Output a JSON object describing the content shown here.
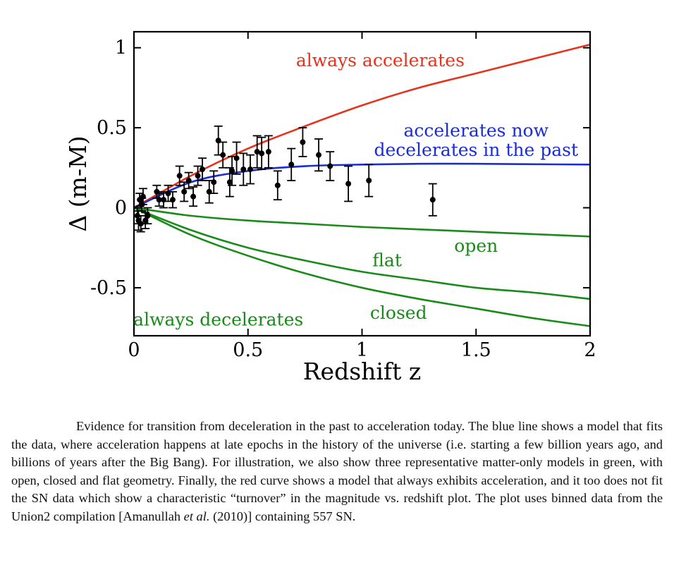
{
  "chart_data": {
    "type": "scatter",
    "xlabel": "Redshift z",
    "ylabel": "Δ (m-M)",
    "xlim": [
      0,
      2
    ],
    "ylim": [
      -0.8,
      1.1
    ],
    "x_ticks": [
      "0",
      "0.5",
      "1",
      "1.5",
      "2"
    ],
    "y_ticks": [
      "1",
      "0.5",
      "0",
      "-0.5"
    ],
    "x_tick_values": [
      0,
      0.5,
      1,
      1.5,
      2
    ],
    "y_tick_values": [
      1,
      0.5,
      0,
      -0.5
    ],
    "grid": false,
    "data_points": {
      "x": [
        0.015,
        0.02,
        0.025,
        0.03,
        0.035,
        0.04,
        0.05,
        0.06,
        0.1,
        0.11,
        0.13,
        0.15,
        0.17,
        0.2,
        0.22,
        0.24,
        0.26,
        0.28,
        0.3,
        0.33,
        0.35,
        0.37,
        0.39,
        0.42,
        0.43,
        0.45,
        0.48,
        0.51,
        0.54,
        0.56,
        0.59,
        0.63,
        0.69,
        0.74,
        0.81,
        0.86,
        0.94,
        1.03,
        1.31
      ],
      "y": [
        -0.05,
        -0.08,
        0.05,
        -0.1,
        0.02,
        0.07,
        -0.08,
        -0.05,
        0.1,
        0.05,
        0.05,
        0.09,
        0.05,
        0.2,
        0.1,
        0.17,
        0.07,
        0.2,
        0.24,
        0.1,
        0.16,
        0.42,
        0.33,
        0.16,
        0.23,
        0.31,
        0.24,
        0.24,
        0.35,
        0.34,
        0.35,
        0.14,
        0.27,
        0.41,
        0.33,
        0.26,
        0.15,
        0.17,
        0.05
      ],
      "yerr": [
        0.05,
        0.06,
        0.04,
        0.05,
        0.04,
        0.05,
        0.05,
        0.05,
        0.04,
        0.04,
        0.05,
        0.05,
        0.05,
        0.06,
        0.06,
        0.05,
        0.06,
        0.06,
        0.07,
        0.07,
        0.07,
        0.09,
        0.08,
        0.09,
        0.09,
        0.1,
        0.1,
        0.09,
        0.1,
        0.1,
        0.1,
        0.09,
        0.1,
        0.09,
        0.1,
        0.09,
        0.11,
        0.1,
        0.1
      ]
    },
    "series": [
      {
        "name": "always accelerates",
        "color": "#e8331c",
        "x": [
          0,
          0.25,
          0.5,
          0.75,
          1,
          1.25,
          1.5,
          1.75,
          2
        ],
        "y": [
          0,
          0.2,
          0.37,
          0.51,
          0.64,
          0.75,
          0.84,
          0.93,
          1.02
        ]
      },
      {
        "name": "accelerates now\ndecelerates in the past",
        "color": "#1a2bd8",
        "x": [
          0,
          0.25,
          0.5,
          0.75,
          1,
          1.25,
          1.5,
          1.75,
          2
        ],
        "y": [
          0,
          0.16,
          0.23,
          0.26,
          0.27,
          0.275,
          0.275,
          0.272,
          0.27
        ]
      },
      {
        "name": "open",
        "color": "#1a8a1a",
        "x": [
          0,
          0.25,
          0.5,
          0.75,
          1,
          1.25,
          1.5,
          1.75,
          2
        ],
        "y": [
          0,
          -0.05,
          -0.08,
          -0.1,
          -0.12,
          -0.135,
          -0.15,
          -0.165,
          -0.18
        ]
      },
      {
        "name": "flat",
        "color": "#1a8a1a",
        "x": [
          0,
          0.25,
          0.5,
          0.75,
          1,
          1.25,
          1.5,
          1.75,
          2
        ],
        "y": [
          0,
          -0.14,
          -0.25,
          -0.33,
          -0.4,
          -0.45,
          -0.5,
          -0.53,
          -0.57
        ]
      },
      {
        "name": "closed",
        "color": "#1a8a1a",
        "x": [
          0,
          0.25,
          0.5,
          0.75,
          1,
          1.25,
          1.5,
          1.75,
          2
        ],
        "y": [
          0,
          -0.17,
          -0.3,
          -0.41,
          -0.5,
          -0.57,
          -0.63,
          -0.69,
          -0.74
        ]
      }
    ],
    "annotations": [
      {
        "text": "always accelerates",
        "color": "#e8331c",
        "x": 1.08,
        "y": 0.92
      },
      {
        "text": "accelerates now",
        "color": "#1a2bd8",
        "x": 1.5,
        "y": 0.48
      },
      {
        "text": "decelerates in the past",
        "color": "#1a2bd8",
        "x": 1.5,
        "y": 0.36
      },
      {
        "text": "open",
        "color": "#1a8a1a",
        "x": 1.5,
        "y": -0.24
      },
      {
        "text": "flat",
        "color": "#1a8a1a",
        "x": 1.11,
        "y": -0.33
      },
      {
        "text": "closed",
        "color": "#1a8a1a",
        "x": 1.16,
        "y": -0.66
      },
      {
        "text": "always decelerates",
        "color": "#1a8a1a",
        "x": 0.37,
        "y": -0.7
      }
    ]
  },
  "caption": {
    "text": "Evidence for transition from deceleration in the past to acceleration today. The blue line shows a model that fits the data, where acceleration happens at late epochs in the history of the universe (i.e. starting a few billion years ago, and billions of years after the Big Bang). For illustration, we also show three representative matter-only models in green, with open, closed and flat geometry. Finally, the red curve shows a model that always exhibits acceleration, and it too does not fit the SN data which show a characteristic “turnover” in the magnitude vs. redshift plot. The plot uses binned data from the Union2 compilation [Amanullah",
    "etal": "et al.",
    "tail": "(2010)] containing 557 SN."
  }
}
